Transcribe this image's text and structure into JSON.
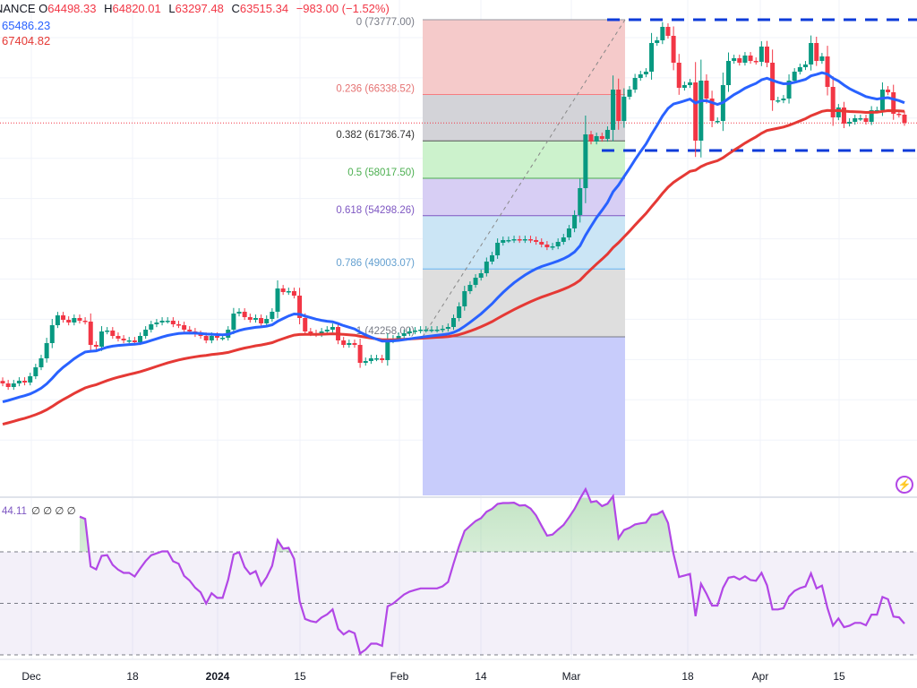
{
  "header": {
    "symbol_fragment": "NANCE",
    "open_label": "O",
    "open": "64498.33",
    "high_label": "H",
    "high": "64820.01",
    "low_label": "L",
    "low": "63297.48",
    "close_label": "C",
    "close": "63515.34",
    "change": "−983.00 (−1.52%)",
    "ma_fast_value": "65486.23",
    "ma_slow_value": "67404.82"
  },
  "colors": {
    "up": "#089981",
    "down": "#f23645",
    "ma_fast": "#2962ff",
    "ma_slow": "#e53935",
    "rsi": "#b247e6",
    "range_lines": "#0d3bd9"
  },
  "fib": {
    "levels": [
      {
        "label": "0 (73777.00)",
        "ratio": 0,
        "price": 73777.0,
        "line": "#9598a1",
        "fill": "#f4c7c7",
        "text": "#787b86"
      },
      {
        "label": "0.236 (66338.52)",
        "ratio": 0.236,
        "price": 66338.52,
        "line": "#f77c80",
        "fill": "#d1d1d6",
        "text": "#e57373"
      },
      {
        "label": "0.382 (61736.74)",
        "ratio": 0.382,
        "price": 61736.74,
        "line": "#555",
        "fill": "#c9f1c9",
        "text": "#333333"
      },
      {
        "label": "0.5 (58017.50)",
        "ratio": 0.5,
        "price": 58017.5,
        "line": "#4caf50",
        "fill": "#d5cbf3",
        "text": "#4caf50"
      },
      {
        "label": "0.618 (54298.26)",
        "ratio": 0.618,
        "price": 54298.26,
        "line": "#7e57c2",
        "fill": "#c8e4f4",
        "text": "#7e57c2"
      },
      {
        "label": "0.786 (49003.07)",
        "ratio": 0.786,
        "price": 49003.07,
        "line": "#64b5f6",
        "fill": "#dcdcdc",
        "text": "#64a0d0"
      },
      {
        "label": "1 (42258.00)",
        "ratio": 1,
        "price": 42258.0,
        "line": "#787b86",
        "fill": "#c5c9fb",
        "text": "#787b86"
      }
    ]
  },
  "range": {
    "top": 73777,
    "bottom": 60777
  },
  "rsi": {
    "value": "44.11",
    "extra": "∅ ∅ ∅ ∅",
    "upper": 70,
    "middle": 50,
    "lower": 30
  },
  "xaxis": {
    "ticks": [
      "Dec",
      "18",
      "2024",
      "15",
      "Feb",
      "14",
      "Mar",
      "18",
      "Apr",
      "15"
    ]
  },
  "chart_data": {
    "type": "candlestick",
    "x_range": [
      "2023-11-27",
      "2024-04-24"
    ],
    "ylim": [
      30000,
      76000
    ],
    "indicators": [
      "EMA fast",
      "MA slow",
      "RSI 14"
    ],
    "close": [
      37627,
      37271,
      37627,
      37894,
      37716,
      38339,
      39230,
      40120,
      41634,
      43414,
      44391,
      43948,
      43681,
      44127,
      43860,
      43770,
      41456,
      41278,
      42791,
      42880,
      42346,
      42079,
      41901,
      41901,
      41723,
      42346,
      42969,
      43503,
      43681,
      43860,
      43860,
      43503,
      43414,
      42969,
      42791,
      42524,
      42346,
      41901,
      42346,
      42168,
      42168,
      42969,
      44569,
      44750,
      44215,
      43948,
      44127,
      43592,
      44038,
      44750,
      47064,
      46708,
      46797,
      46352,
      44127,
      42791,
      42613,
      42524,
      42791,
      42969,
      43236,
      41901,
      41456,
      41634,
      41456,
      39675,
      39853,
      40120,
      40120,
      39942,
      41901,
      42079,
      42346,
      42613,
      42791,
      42880,
      42969,
      42969,
      42969,
      42969,
      43058,
      43236,
      44127,
      45284,
      46797,
      47420,
      48132,
      48579,
      49736,
      50360,
      51606,
      51873,
      51873,
      51962,
      51873,
      51962,
      51873,
      51695,
      51428,
      51161,
      51250,
      51695,
      52140,
      53031,
      54366,
      57037,
      62380,
      61668,
      62202,
      61935,
      62825,
      66832,
      63716,
      66120,
      66832,
      67989,
      68346,
      68613,
      71462,
      71729,
      73065,
      72174,
      69503,
      67010,
      67277,
      67544,
      61757,
      67722,
      65942,
      63716,
      63716,
      67277,
      69681,
      69948,
      69503,
      70215,
      69681,
      69592,
      71106,
      69503,
      65764,
      65764,
      65942,
      67722,
      68613,
      69058,
      69325,
      71462,
      69681,
      70126,
      67099,
      64072,
      65051,
      63449,
      63627,
      63983,
      63983,
      63627,
      64784,
      64784,
      66832,
      66565,
      64428,
      64339,
      63515
    ]
  }
}
